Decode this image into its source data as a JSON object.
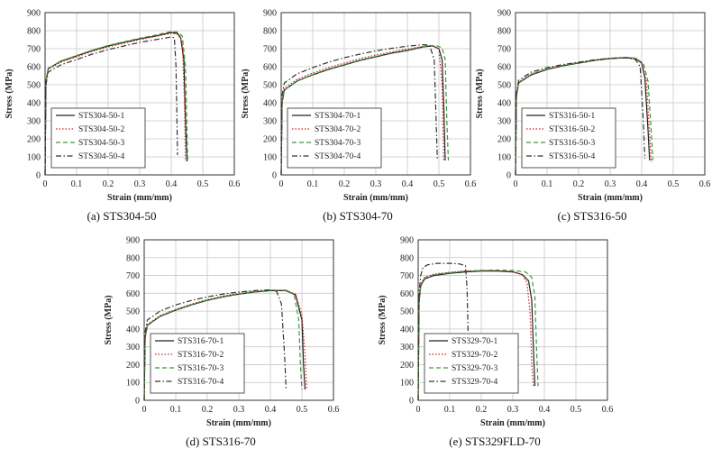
{
  "chart_data": [
    {
      "type": "line",
      "caption": "(a) STS304-50",
      "xlabel": "Strain (mm/mm)",
      "ylabel": "Stress (MPa)",
      "xlim": [
        0,
        0.6
      ],
      "ylim": [
        0,
        900
      ],
      "xticks": [
        "0",
        "0.1",
        "0.2",
        "0.3",
        "0.4",
        "0.5",
        "0.6"
      ],
      "yticks": [
        "0",
        "100",
        "200",
        "300",
        "400",
        "500",
        "600",
        "700",
        "800",
        "900"
      ],
      "grid": true,
      "legend": "bottom-left",
      "series": [
        {
          "name": "STS304-50-1",
          "style": "solid",
          "color": "#222222",
          "x": [
            0,
            0.003,
            0.01,
            0.05,
            0.1,
            0.15,
            0.2,
            0.25,
            0.3,
            0.35,
            0.4,
            0.42,
            0.43,
            0.44,
            0.445,
            0.45
          ],
          "y": [
            0,
            520,
            590,
            630,
            660,
            690,
            715,
            735,
            755,
            770,
            790,
            785,
            760,
            640,
            300,
            75
          ]
        },
        {
          "name": "STS304-50-2",
          "style": "dotted",
          "color": "#cc2222",
          "x": [
            0,
            0.003,
            0.01,
            0.05,
            0.1,
            0.15,
            0.2,
            0.25,
            0.3,
            0.35,
            0.4,
            0.42,
            0.435,
            0.442,
            0.445
          ],
          "y": [
            0,
            515,
            585,
            625,
            655,
            685,
            710,
            730,
            750,
            768,
            785,
            780,
            740,
            400,
            75
          ]
        },
        {
          "name": "STS304-50-3",
          "style": "dashed",
          "color": "#3a9a3a",
          "x": [
            0,
            0.003,
            0.01,
            0.05,
            0.1,
            0.15,
            0.2,
            0.25,
            0.3,
            0.35,
            0.4,
            0.42,
            0.435,
            0.445,
            0.45,
            0.452
          ],
          "y": [
            0,
            520,
            590,
            632,
            662,
            692,
            718,
            738,
            758,
            775,
            795,
            792,
            770,
            600,
            250,
            80
          ]
        },
        {
          "name": "STS304-50-4",
          "style": "dashdot",
          "color": "#333333",
          "x": [
            0,
            0.003,
            0.01,
            0.05,
            0.1,
            0.15,
            0.2,
            0.25,
            0.3,
            0.35,
            0.4,
            0.41,
            0.415,
            0.42
          ],
          "y": [
            0,
            500,
            570,
            610,
            640,
            670,
            695,
            715,
            735,
            750,
            765,
            760,
            600,
            110
          ]
        }
      ]
    },
    {
      "type": "line",
      "caption": "(b) STS304-70",
      "xlabel": "Strain (mm/mm)",
      "ylabel": "Stress (MPa)",
      "xlim": [
        0,
        0.6
      ],
      "ylim": [
        0,
        900
      ],
      "xticks": [
        "0",
        "0.1",
        "0.2",
        "0.3",
        "0.4",
        "0.5",
        "0.6"
      ],
      "yticks": [
        "0",
        "100",
        "200",
        "300",
        "400",
        "500",
        "600",
        "700",
        "800",
        "900"
      ],
      "grid": true,
      "legend": "bottom-left",
      "series": [
        {
          "name": "STS304-70-1",
          "style": "solid",
          "color": "#222222",
          "x": [
            0,
            0.003,
            0.01,
            0.05,
            0.1,
            0.15,
            0.2,
            0.25,
            0.3,
            0.35,
            0.4,
            0.45,
            0.48,
            0.5,
            0.51,
            0.515,
            0.52
          ],
          "y": [
            0,
            400,
            470,
            520,
            555,
            585,
            610,
            635,
            655,
            675,
            690,
            710,
            715,
            700,
            640,
            400,
            80
          ]
        },
        {
          "name": "STS304-70-2",
          "style": "dotted",
          "color": "#cc2222",
          "x": [
            0,
            0.003,
            0.01,
            0.05,
            0.1,
            0.15,
            0.2,
            0.25,
            0.3,
            0.35,
            0.4,
            0.45,
            0.48,
            0.5,
            0.51,
            0.515
          ],
          "y": [
            0,
            410,
            480,
            530,
            565,
            595,
            620,
            645,
            665,
            682,
            698,
            713,
            718,
            700,
            500,
            80
          ]
        },
        {
          "name": "STS304-70-3",
          "style": "dashed",
          "color": "#3a9a3a",
          "x": [
            0,
            0.003,
            0.01,
            0.05,
            0.1,
            0.15,
            0.2,
            0.25,
            0.3,
            0.35,
            0.4,
            0.45,
            0.49,
            0.51,
            0.52,
            0.525,
            0.53
          ],
          "y": [
            0,
            400,
            470,
            522,
            557,
            587,
            612,
            637,
            657,
            677,
            693,
            712,
            718,
            705,
            640,
            300,
            80
          ]
        },
        {
          "name": "STS304-70-4",
          "style": "dashdot",
          "color": "#333333",
          "x": [
            0,
            0.003,
            0.01,
            0.05,
            0.1,
            0.15,
            0.2,
            0.25,
            0.3,
            0.35,
            0.4,
            0.45,
            0.47,
            0.485,
            0.495
          ],
          "y": [
            0,
            440,
            510,
            560,
            595,
            625,
            650,
            670,
            688,
            702,
            714,
            722,
            720,
            640,
            80
          ]
        }
      ]
    },
    {
      "type": "line",
      "caption": "(c) STS316-50",
      "xlabel": "Strain (mm/mm)",
      "ylabel": "Stress (MPa)",
      "xlim": [
        0,
        0.6
      ],
      "ylim": [
        0,
        900
      ],
      "xticks": [
        "0",
        "0.1",
        "0.2",
        "0.3",
        "0.4",
        "0.5",
        "0.6"
      ],
      "yticks": [
        "0",
        "100",
        "200",
        "300",
        "400",
        "500",
        "600",
        "700",
        "800",
        "900"
      ],
      "grid": true,
      "legend": "bottom-left",
      "series": [
        {
          "name": "STS316-50-1",
          "style": "solid",
          "color": "#222222",
          "x": [
            0,
            0.003,
            0.01,
            0.05,
            0.1,
            0.15,
            0.2,
            0.25,
            0.3,
            0.35,
            0.38,
            0.4,
            0.41,
            0.42,
            0.425
          ],
          "y": [
            0,
            440,
            510,
            555,
            585,
            605,
            620,
            635,
            645,
            650,
            645,
            620,
            540,
            250,
            80
          ]
        },
        {
          "name": "STS316-50-2",
          "style": "dotted",
          "color": "#cc2222",
          "x": [
            0,
            0.003,
            0.01,
            0.05,
            0.1,
            0.15,
            0.2,
            0.25,
            0.3,
            0.35,
            0.38,
            0.4,
            0.415,
            0.425,
            0.43
          ],
          "y": [
            0,
            445,
            515,
            560,
            588,
            608,
            623,
            637,
            647,
            652,
            648,
            625,
            520,
            220,
            70
          ]
        },
        {
          "name": "STS316-50-3",
          "style": "dashed",
          "color": "#3a9a3a",
          "x": [
            0,
            0.003,
            0.01,
            0.05,
            0.1,
            0.15,
            0.2,
            0.25,
            0.3,
            0.35,
            0.38,
            0.405,
            0.42,
            0.43,
            0.435
          ],
          "y": [
            0,
            440,
            512,
            558,
            587,
            607,
            622,
            636,
            646,
            651,
            647,
            620,
            520,
            250,
            80
          ]
        },
        {
          "name": "STS316-50-4",
          "style": "dashdot",
          "color": "#333333",
          "x": [
            0,
            0.003,
            0.01,
            0.05,
            0.1,
            0.15,
            0.2,
            0.25,
            0.3,
            0.35,
            0.38,
            0.395,
            0.405,
            0.41
          ],
          "y": [
            0,
            450,
            525,
            570,
            595,
            612,
            625,
            638,
            647,
            650,
            640,
            600,
            300,
            90
          ]
        }
      ]
    },
    {
      "type": "line",
      "caption": "(d) STS316-70",
      "xlabel": "Strain (mm/mm)",
      "ylabel": "Stress (MPa)",
      "xlim": [
        0,
        0.6
      ],
      "ylim": [
        0,
        900
      ],
      "xticks": [
        "0",
        "0.1",
        "0.2",
        "0.3",
        "0.4",
        "0.5",
        "0.6"
      ],
      "yticks": [
        "0",
        "100",
        "200",
        "300",
        "400",
        "500",
        "600",
        "700",
        "800",
        "900"
      ],
      "grid": true,
      "legend": "bottom-left",
      "series": [
        {
          "name": "STS316-70-1",
          "style": "solid",
          "color": "#222222",
          "x": [
            0,
            0.003,
            0.01,
            0.05,
            0.1,
            0.15,
            0.2,
            0.25,
            0.3,
            0.35,
            0.4,
            0.45,
            0.48,
            0.5,
            0.505,
            0.51
          ],
          "y": [
            0,
            350,
            420,
            470,
            505,
            535,
            560,
            580,
            595,
            607,
            615,
            615,
            590,
            450,
            200,
            60
          ]
        },
        {
          "name": "STS316-70-2",
          "style": "dotted",
          "color": "#cc2222",
          "x": [
            0,
            0.003,
            0.01,
            0.05,
            0.1,
            0.15,
            0.2,
            0.25,
            0.3,
            0.35,
            0.4,
            0.45,
            0.48,
            0.5,
            0.51,
            0.515
          ],
          "y": [
            0,
            355,
            425,
            475,
            510,
            540,
            565,
            585,
            600,
            611,
            618,
            618,
            595,
            480,
            250,
            60
          ]
        },
        {
          "name": "STS316-70-3",
          "style": "dashed",
          "color": "#3a9a3a",
          "x": [
            0,
            0.003,
            0.01,
            0.05,
            0.1,
            0.15,
            0.2,
            0.25,
            0.3,
            0.35,
            0.4,
            0.45,
            0.475,
            0.49,
            0.495,
            0.5
          ],
          "y": [
            0,
            350,
            422,
            472,
            507,
            537,
            562,
            582,
            597,
            609,
            617,
            617,
            595,
            450,
            200,
            60
          ]
        },
        {
          "name": "STS316-70-4",
          "style": "dashdot",
          "color": "#333333",
          "x": [
            0,
            0.003,
            0.01,
            0.05,
            0.1,
            0.15,
            0.2,
            0.25,
            0.3,
            0.35,
            0.4,
            0.42,
            0.435,
            0.445,
            0.45
          ],
          "y": [
            0,
            380,
            450,
            500,
            535,
            560,
            580,
            596,
            607,
            615,
            620,
            610,
            540,
            250,
            60
          ]
        }
      ]
    },
    {
      "type": "line",
      "caption": "(e) STS329FLD-70",
      "xlabel": "Strain (mm/mm)",
      "ylabel": "Stress (MPa)",
      "xlim": [
        0,
        0.6
      ],
      "ylim": [
        0,
        900
      ],
      "xticks": [
        "0",
        "0.1",
        "0.2",
        "0.3",
        "0.4",
        "0.5",
        "0.6"
      ],
      "yticks": [
        "0",
        "100",
        "200",
        "300",
        "400",
        "500",
        "600",
        "700",
        "800",
        "900"
      ],
      "grid": true,
      "legend": "bottom-left",
      "series": [
        {
          "name": "STS329-70-1",
          "style": "solid",
          "color": "#222222",
          "x": [
            0,
            0.003,
            0.008,
            0.02,
            0.05,
            0.1,
            0.15,
            0.2,
            0.25,
            0.3,
            0.33,
            0.35,
            0.36,
            0.365,
            0.37
          ],
          "y": [
            0,
            550,
            640,
            680,
            700,
            712,
            720,
            725,
            725,
            720,
            705,
            670,
            560,
            300,
            80
          ]
        },
        {
          "name": "STS329-70-2",
          "style": "dotted",
          "color": "#cc2222",
          "x": [
            0,
            0.003,
            0.008,
            0.02,
            0.05,
            0.1,
            0.15,
            0.2,
            0.25,
            0.3,
            0.33,
            0.345,
            0.355,
            0.36,
            0.365
          ],
          "y": [
            0,
            560,
            650,
            690,
            708,
            718,
            725,
            728,
            728,
            722,
            705,
            660,
            480,
            200,
            80
          ]
        },
        {
          "name": "STS329-70-3",
          "style": "dashed",
          "color": "#3a9a3a",
          "x": [
            0,
            0.003,
            0.008,
            0.02,
            0.05,
            0.1,
            0.15,
            0.2,
            0.25,
            0.3,
            0.34,
            0.36,
            0.37,
            0.375,
            0.38
          ],
          "y": [
            0,
            555,
            645,
            685,
            705,
            716,
            724,
            728,
            730,
            728,
            720,
            690,
            580,
            300,
            80
          ]
        },
        {
          "name": "STS329-70-4",
          "style": "dashdot",
          "color": "#333333",
          "x": [
            0,
            0.003,
            0.008,
            0.015,
            0.03,
            0.06,
            0.1,
            0.13,
            0.15,
            0.155,
            0.158,
            0.16,
            0.162
          ],
          "y": [
            0,
            600,
            700,
            745,
            760,
            768,
            768,
            765,
            755,
            620,
            400,
            250,
            150
          ]
        }
      ]
    }
  ]
}
